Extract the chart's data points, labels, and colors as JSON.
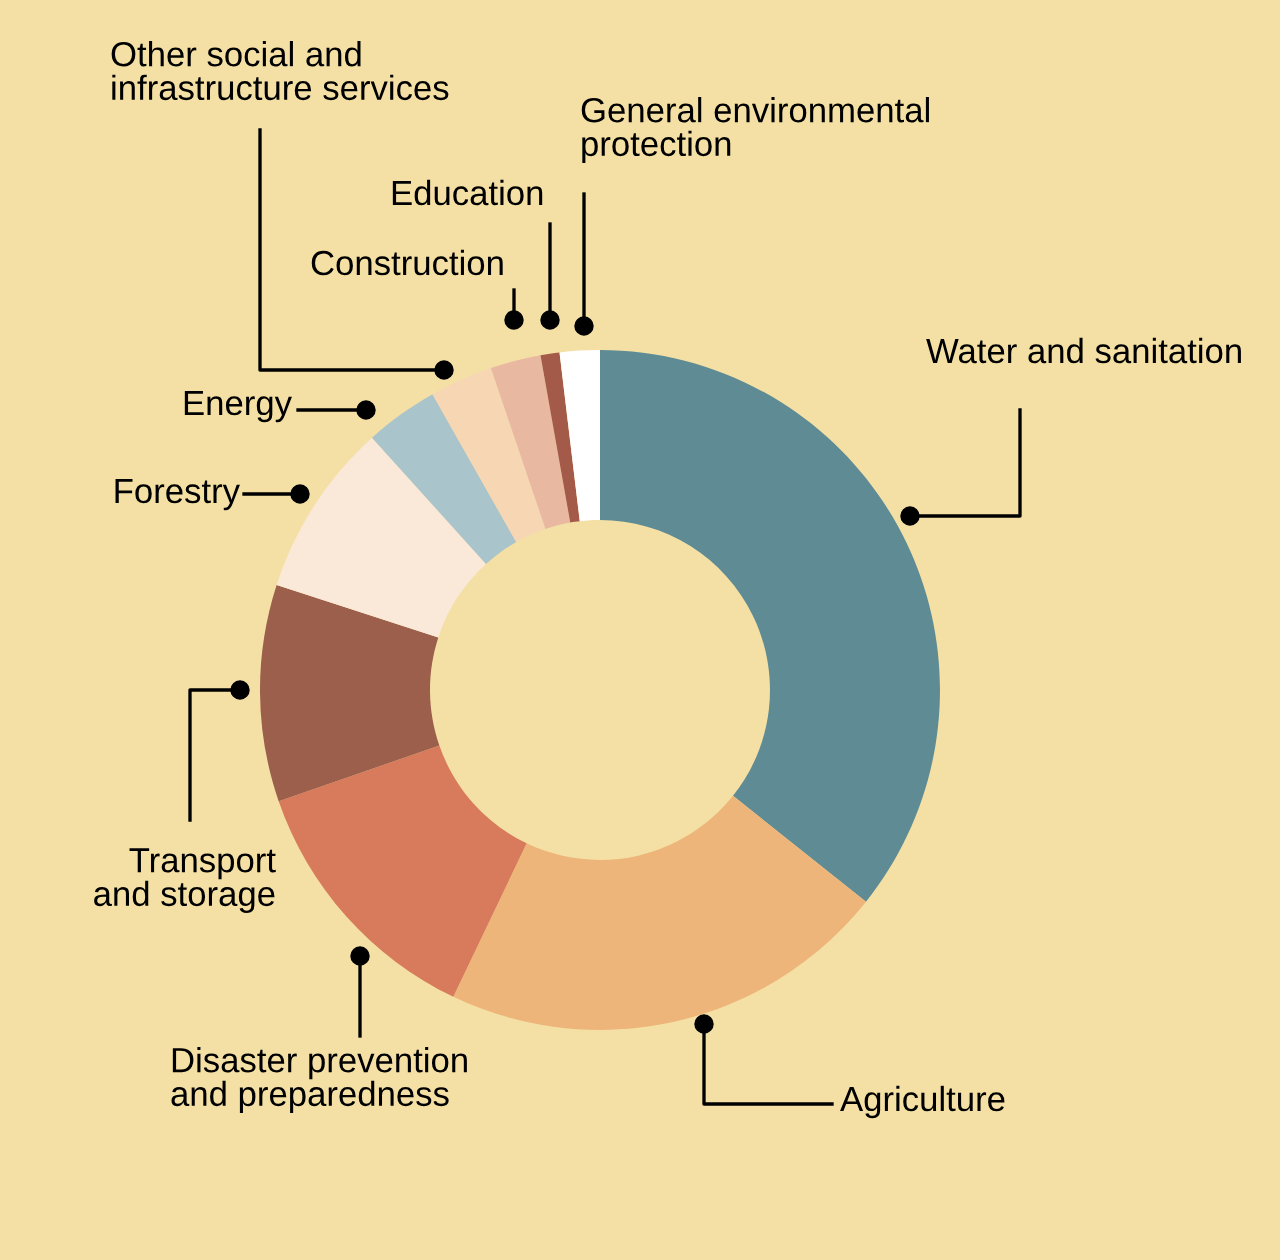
{
  "chart_data": {
    "type": "donut",
    "categories": [
      "Water and sanitation",
      "Agriculture",
      "Disaster prevention\nand preparedness",
      "Transport\nand storage",
      "Forestry",
      "Energy",
      "Other social and\ninfrastructure services",
      "Construction",
      "Education",
      "General environmental\nprotection"
    ],
    "values": [
      35.7,
      21.4,
      12.6,
      10.3,
      8.3,
      3.5,
      3.0,
      2.4,
      0.9,
      1.9
    ],
    "colors": [
      "#5f8b94",
      "#eeb57a",
      "#d87b5d",
      "#9b5f4c",
      "#fae8d8",
      "#a9c4cb",
      "#f7d6b4",
      "#e9b8a0",
      "#a45a48",
      "#ffffff"
    ],
    "legend": false
  }
}
